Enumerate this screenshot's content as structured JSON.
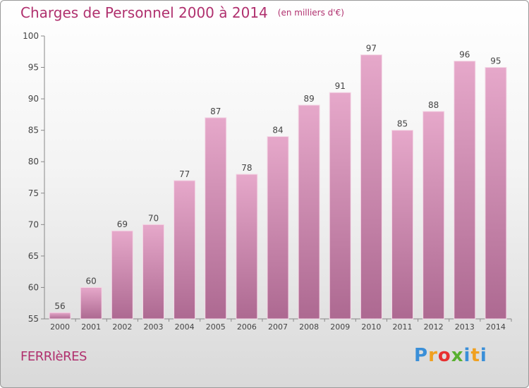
{
  "title": "Charges de Personnel 2000 à 2014",
  "subtitle": "(en milliers d'€)",
  "town": "FERRIèRES",
  "logo": {
    "letters": [
      "P",
      "r",
      "o",
      "x",
      "i",
      "t",
      "i"
    ],
    "colors": [
      "#3a8fd8",
      "#f0a020",
      "#e83030",
      "#58b030",
      "#3a8fd8",
      "#f0a020",
      "#3a8fd8"
    ]
  },
  "colors": {
    "bar_top": "#e6a8ca",
    "bar_bottom": "#ad6991",
    "title": "#b0306e",
    "axis": "#888888"
  },
  "chart_data": {
    "type": "bar",
    "categories": [
      "2000",
      "2001",
      "2002",
      "2003",
      "2004",
      "2005",
      "2006",
      "2007",
      "2008",
      "2009",
      "2010",
      "2011",
      "2012",
      "2013",
      "2014"
    ],
    "values": [
      56,
      60,
      69,
      70,
      77,
      87,
      78,
      84,
      89,
      91,
      97,
      85,
      88,
      96,
      95
    ],
    "ylim": [
      55,
      100
    ],
    "yticks": [
      55,
      60,
      65,
      70,
      75,
      80,
      85,
      90,
      95,
      100
    ],
    "grid": false
  }
}
